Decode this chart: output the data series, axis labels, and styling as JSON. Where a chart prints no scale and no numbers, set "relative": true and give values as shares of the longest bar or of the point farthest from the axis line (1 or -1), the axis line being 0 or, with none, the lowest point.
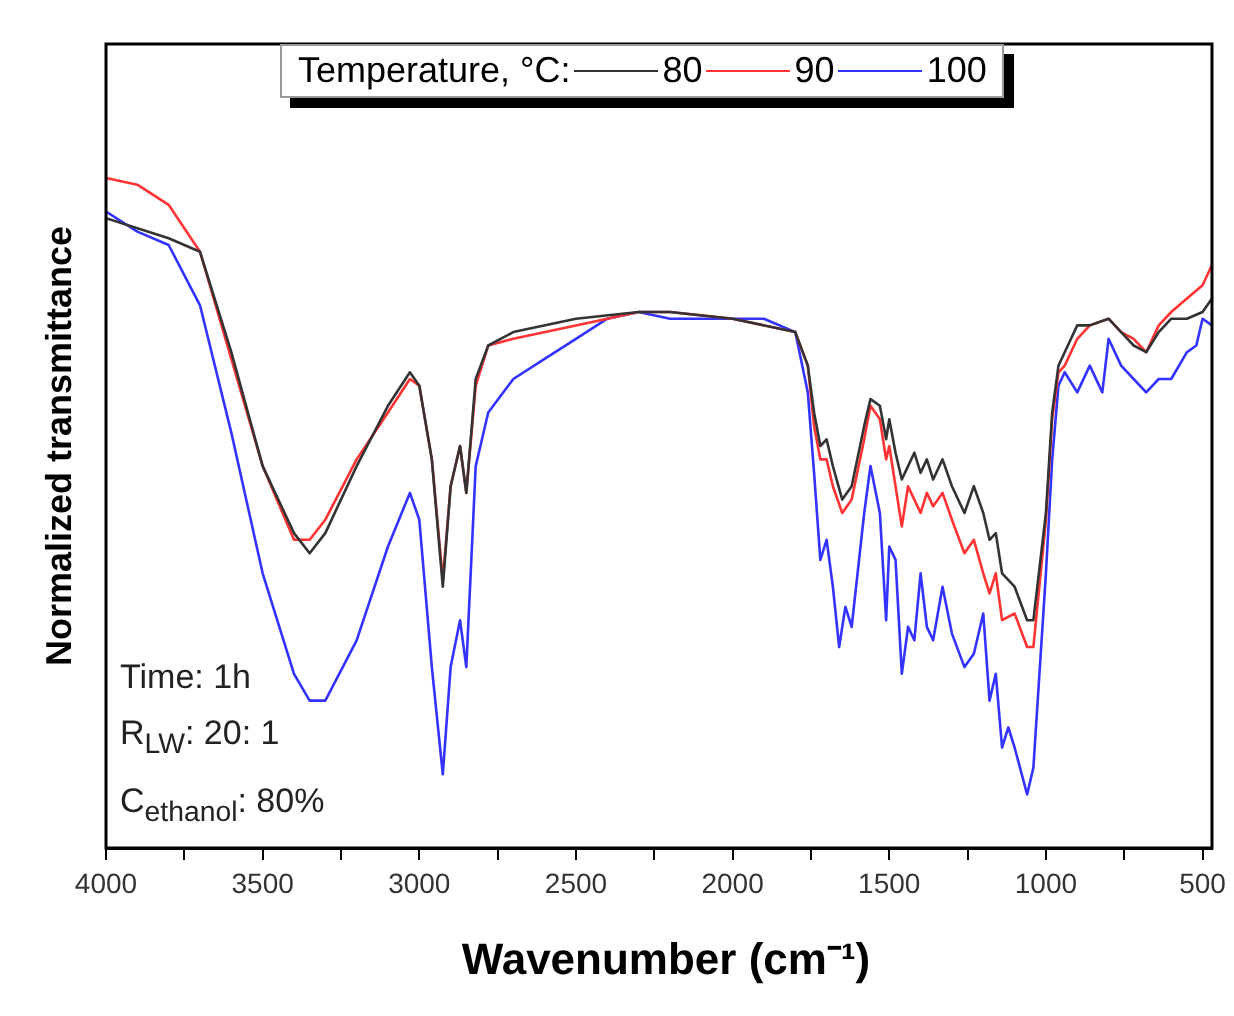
{
  "chart_data": {
    "type": "line",
    "relative": true,
    "xlabel": "Wavenumber (cm⁻¹)",
    "ylabel": "Normalized transmittance",
    "legend_title": "Temperature, °C:",
    "legend": "top",
    "grid": false,
    "marker": "none",
    "line_style": "solid",
    "tick_labels": "x",
    "xlim": [
      4000,
      470
    ],
    "xticks": [
      4000,
      {
        "value": 3750,
        "label": null
      },
      3500,
      {
        "value": 3250,
        "label": null
      },
      3000,
      {
        "value": 2750,
        "label": null
      },
      2500,
      {
        "value": 2250,
        "label": null
      },
      2000,
      {
        "value": 1750,
        "label": null
      },
      1500,
      {
        "value": 1250,
        "label": null
      },
      1000,
      {
        "value": 750,
        "label": null
      },
      500
    ],
    "annotations": [
      "Time: 1h",
      "R$_{LW}$: 20: 1",
      "C$_{ethanol}$: 80%"
    ],
    "series": [
      {
        "name": "80",
        "color": "#333333",
        "x": [
          4000,
          3800,
          3700,
          3600,
          3500,
          3400,
          3350,
          3300,
          3200,
          3100,
          3030,
          3000,
          2960,
          2925,
          2900,
          2870,
          2850,
          2820,
          2780,
          2700,
          2500,
          2300,
          2200,
          2000,
          1800,
          1760,
          1740,
          1720,
          1700,
          1680,
          1650,
          1620,
          1580,
          1560,
          1530,
          1510,
          1500,
          1480,
          1460,
          1440,
          1420,
          1400,
          1380,
          1360,
          1330,
          1300,
          1260,
          1230,
          1200,
          1180,
          1160,
          1140,
          1100,
          1060,
          1040,
          1000,
          980,
          960,
          940,
          900,
          860,
          800,
          760,
          720,
          680,
          640,
          600,
          550,
          500,
          470
        ],
        "values": [
          0.94,
          0.91,
          0.89,
          0.74,
          0.57,
          0.47,
          0.44,
          0.47,
          0.57,
          0.66,
          0.71,
          0.69,
          0.58,
          0.39,
          0.54,
          0.6,
          0.53,
          0.7,
          0.75,
          0.77,
          0.79,
          0.8,
          0.8,
          0.79,
          0.77,
          0.72,
          0.65,
          0.6,
          0.61,
          0.57,
          0.52,
          0.54,
          0.63,
          0.67,
          0.66,
          0.61,
          0.64,
          0.59,
          0.55,
          0.57,
          0.59,
          0.56,
          0.58,
          0.55,
          0.58,
          0.54,
          0.5,
          0.54,
          0.5,
          0.46,
          0.47,
          0.41,
          0.39,
          0.34,
          0.34,
          0.5,
          0.65,
          0.72,
          0.74,
          0.78,
          0.78,
          0.79,
          0.77,
          0.75,
          0.74,
          0.77,
          0.79,
          0.79,
          0.8,
          0.82
        ]
      },
      {
        "name": "90",
        "color": "#ff3333",
        "x": [
          4000,
          3900,
          3800,
          3700,
          3600,
          3500,
          3400,
          3350,
          3300,
          3200,
          3100,
          3030,
          3000,
          2960,
          2925,
          2900,
          2870,
          2850,
          2820,
          2780,
          2700,
          2500,
          2300,
          2200,
          2000,
          1800,
          1760,
          1740,
          1720,
          1700,
          1680,
          1650,
          1620,
          1580,
          1560,
          1530,
          1510,
          1500,
          1480,
          1460,
          1440,
          1420,
          1400,
          1380,
          1360,
          1330,
          1300,
          1260,
          1230,
          1200,
          1180,
          1160,
          1140,
          1100,
          1060,
          1040,
          1000,
          980,
          960,
          940,
          900,
          860,
          800,
          760,
          720,
          680,
          640,
          600,
          550,
          500,
          470
        ],
        "values": [
          1.0,
          0.99,
          0.96,
          0.89,
          0.73,
          0.57,
          0.46,
          0.46,
          0.49,
          0.58,
          0.65,
          0.7,
          0.69,
          0.58,
          0.4,
          0.54,
          0.6,
          0.53,
          0.69,
          0.75,
          0.76,
          0.78,
          0.8,
          0.8,
          0.79,
          0.77,
          0.72,
          0.63,
          0.58,
          0.58,
          0.54,
          0.5,
          0.52,
          0.61,
          0.66,
          0.64,
          0.58,
          0.6,
          0.54,
          0.48,
          0.54,
          0.52,
          0.5,
          0.53,
          0.51,
          0.53,
          0.49,
          0.44,
          0.46,
          0.41,
          0.38,
          0.41,
          0.34,
          0.35,
          0.3,
          0.3,
          0.49,
          0.64,
          0.71,
          0.72,
          0.76,
          0.78,
          0.79,
          0.77,
          0.76,
          0.74,
          0.78,
          0.8,
          0.82,
          0.84,
          0.87
        ]
      },
      {
        "name": "100",
        "color": "#3333ff",
        "x": [
          4000,
          3900,
          3800,
          3700,
          3600,
          3500,
          3400,
          3350,
          3300,
          3200,
          3100,
          3030,
          3000,
          2960,
          2925,
          2900,
          2870,
          2850,
          2820,
          2780,
          2700,
          2600,
          2500,
          2400,
          2300,
          2200,
          2100,
          2000,
          1900,
          1800,
          1760,
          1740,
          1720,
          1700,
          1680,
          1660,
          1640,
          1620,
          1580,
          1560,
          1530,
          1510,
          1500,
          1480,
          1460,
          1440,
          1420,
          1400,
          1380,
          1360,
          1330,
          1300,
          1260,
          1230,
          1200,
          1180,
          1160,
          1140,
          1120,
          1100,
          1060,
          1040,
          1000,
          980,
          960,
          940,
          900,
          860,
          820,
          800,
          760,
          720,
          680,
          640,
          600,
          550,
          520,
          500,
          470
        ],
        "values": [
          0.95,
          0.92,
          0.9,
          0.81,
          0.62,
          0.41,
          0.26,
          0.22,
          0.22,
          0.31,
          0.45,
          0.53,
          0.49,
          0.27,
          0.11,
          0.27,
          0.34,
          0.27,
          0.57,
          0.65,
          0.7,
          0.73,
          0.76,
          0.79,
          0.8,
          0.79,
          0.79,
          0.79,
          0.79,
          0.77,
          0.68,
          0.56,
          0.43,
          0.46,
          0.39,
          0.3,
          0.36,
          0.33,
          0.5,
          0.57,
          0.5,
          0.34,
          0.45,
          0.43,
          0.26,
          0.33,
          0.31,
          0.41,
          0.33,
          0.31,
          0.39,
          0.32,
          0.27,
          0.29,
          0.35,
          0.22,
          0.26,
          0.15,
          0.18,
          0.15,
          0.08,
          0.12,
          0.41,
          0.58,
          0.69,
          0.71,
          0.68,
          0.72,
          0.68,
          0.76,
          0.72,
          0.7,
          0.68,
          0.7,
          0.7,
          0.74,
          0.75,
          0.79,
          0.78
        ]
      }
    ]
  }
}
